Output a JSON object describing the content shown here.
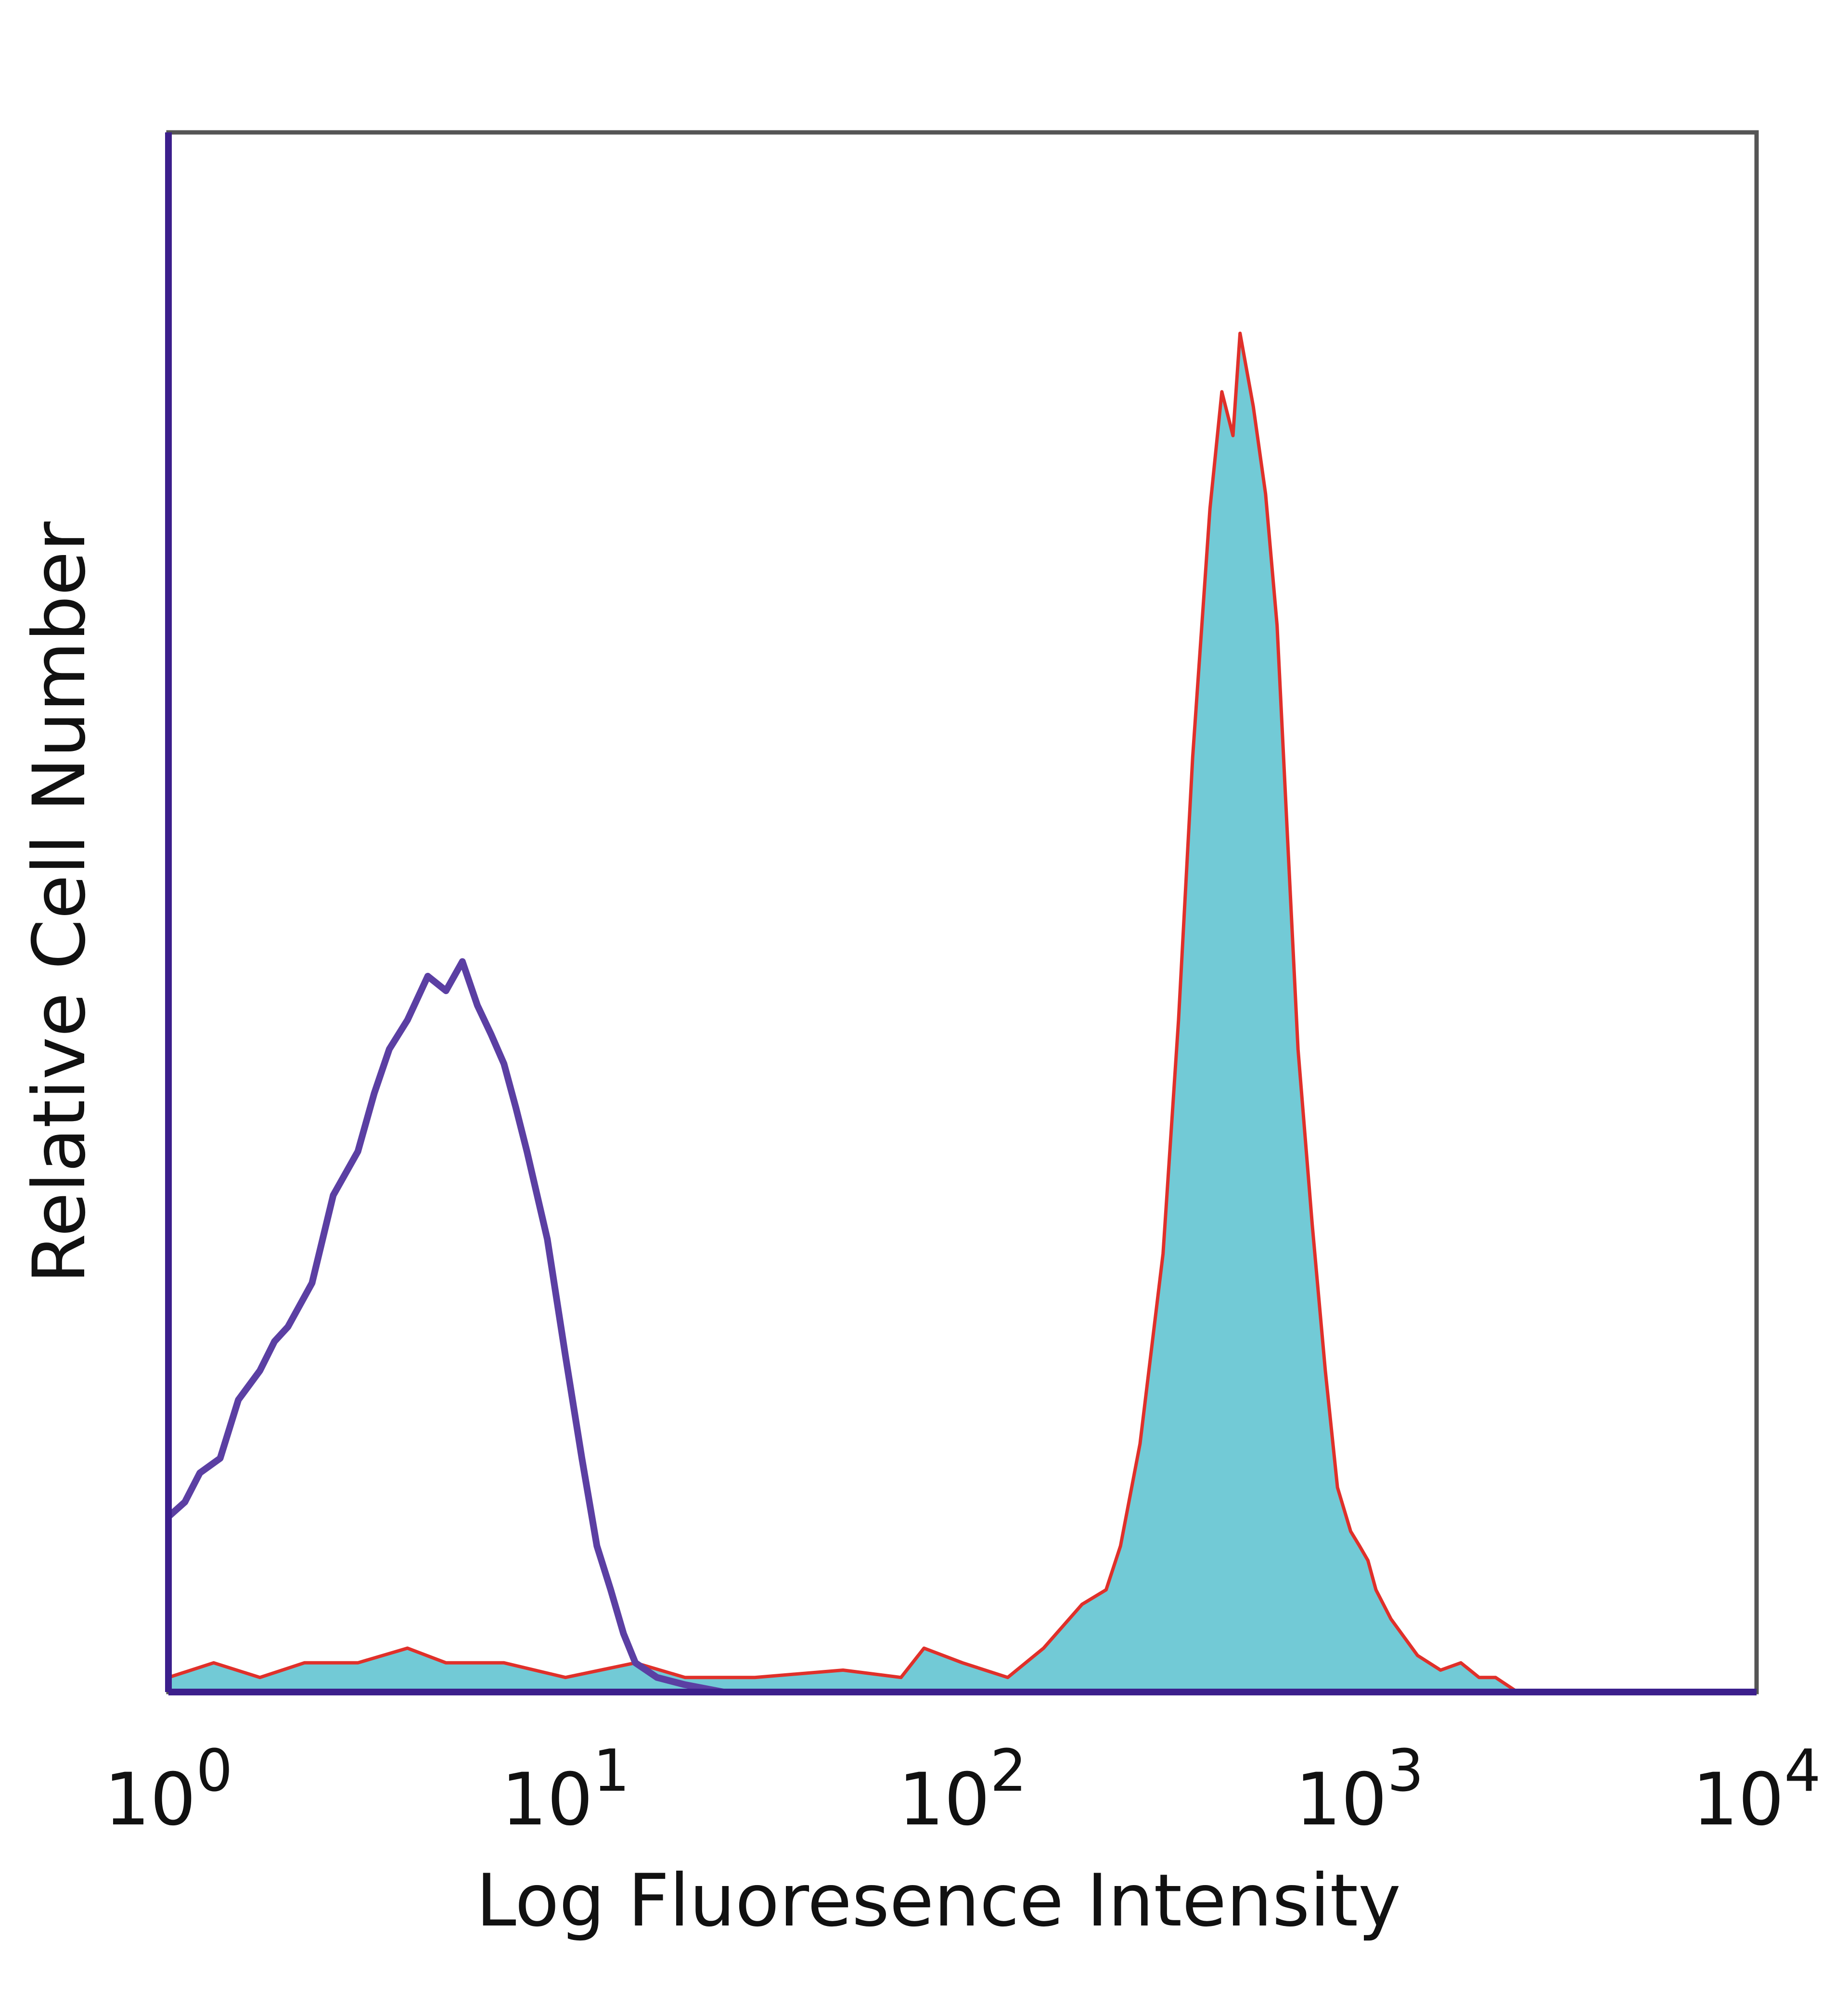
{
  "chart_data": {
    "type": "area",
    "xlabel": "Log Fluoresence Intensity",
    "ylabel": "Relative Cell Number",
    "x_scale": "log",
    "xlim": [
      1,
      10000
    ],
    "ylim": [
      0,
      1
    ],
    "grid": false,
    "legend": "none",
    "x_ticks": [
      {
        "base": "10",
        "exp": "0"
      },
      {
        "base": "10",
        "exp": "1"
      },
      {
        "base": "10",
        "exp": "2"
      },
      {
        "base": "10",
        "exp": "3"
      },
      {
        "base": "10",
        "exp": "4"
      }
    ],
    "series": [
      {
        "style": "filled",
        "fill_color": "#72CAD6",
        "line_color": "#E0302A",
        "x": [
          1,
          1.3,
          1.7,
          2.2,
          3,
          4,
          5,
          7,
          10,
          15,
          20,
          30,
          50,
          70,
          80,
          100,
          130,
          160,
          200,
          230,
          250,
          280,
          320,
          350,
          380,
          420,
          450,
          480,
          500,
          540,
          580,
          620,
          660,
          700,
          760,
          820,
          880,
          950,
          1000,
          1050,
          1100,
          1200,
          1400,
          1600,
          1800,
          2000,
          2200,
          2500
        ],
        "values": [
          0.01,
          0.02,
          0.01,
          0.02,
          0.02,
          0.03,
          0.02,
          0.02,
          0.01,
          0.02,
          0.01,
          0.01,
          0.015,
          0.01,
          0.03,
          0.02,
          0.01,
          0.03,
          0.06,
          0.07,
          0.1,
          0.17,
          0.3,
          0.46,
          0.64,
          0.81,
          0.89,
          0.86,
          0.93,
          0.88,
          0.82,
          0.73,
          0.58,
          0.44,
          0.32,
          0.22,
          0.14,
          0.11,
          0.1,
          0.09,
          0.07,
          0.05,
          0.025,
          0.015,
          0.02,
          0.01,
          0.01,
          0.0
        ]
      },
      {
        "style": "line",
        "line_color": "#5B3FA3",
        "x": [
          1,
          1.1,
          1.2,
          1.35,
          1.5,
          1.7,
          1.85,
          2.0,
          2.3,
          2.6,
          3.0,
          3.3,
          3.6,
          4.0,
          4.5,
          5.0,
          5.5,
          6.0,
          6.5,
          7.0,
          7.5,
          8.0,
          9.0,
          10,
          11,
          12,
          13,
          14,
          15,
          17,
          20,
          25,
          30
        ],
        "values": [
          0.12,
          0.13,
          0.15,
          0.16,
          0.2,
          0.22,
          0.24,
          0.25,
          0.28,
          0.34,
          0.37,
          0.41,
          0.44,
          0.46,
          0.49,
          0.48,
          0.5,
          0.47,
          0.45,
          0.43,
          0.4,
          0.37,
          0.31,
          0.23,
          0.16,
          0.1,
          0.07,
          0.04,
          0.02,
          0.01,
          0.005,
          0.0,
          0.0
        ]
      }
    ]
  }
}
